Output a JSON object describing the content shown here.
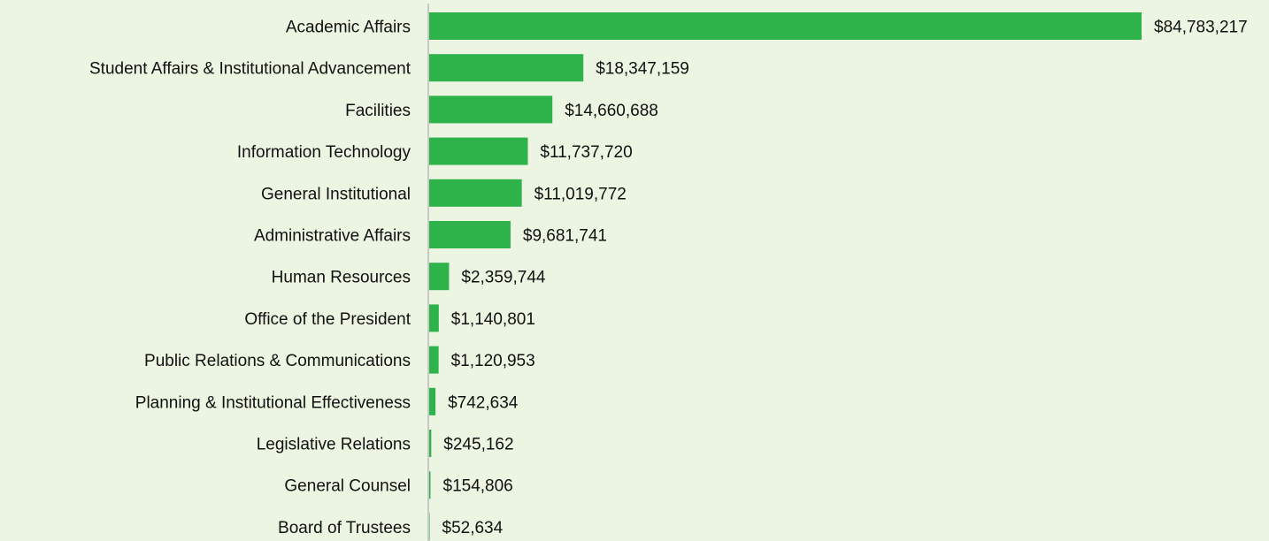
{
  "chart_data": {
    "type": "bar",
    "orientation": "horizontal",
    "categories": [
      "Academic Affairs",
      "Student Affairs & Institutional Advancement",
      "Facilities",
      "Information Technology",
      "General Institutional",
      "Administrative Affairs",
      "Human Resources",
      "Office of the President",
      "Public Relations & Communications",
      "Planning & Institutional Effectiveness",
      "Legislative Relations",
      "General Counsel",
      "Board of Trustees"
    ],
    "values": [
      84783217,
      18347159,
      14660688,
      11737720,
      11019772,
      9681741,
      2359744,
      1140801,
      1120953,
      742634,
      245162,
      154806,
      52634
    ],
    "value_labels": [
      "$84,783,217",
      "$18,347,159",
      "$14,660,688",
      "$11,737,720",
      "$11,019,772",
      "$9,681,741",
      "$2,359,744",
      "$1,140,801",
      "$1,120,953",
      "$742,634",
      "$245,162",
      "$154,806",
      "$52,634"
    ],
    "title": "",
    "xlabel": "",
    "ylabel": "",
    "grid": false,
    "legend": "none",
    "colors": {
      "bar": "#2db34a",
      "background": "#ebf5e2",
      "axis": "#c8c8c8",
      "text": "#111111"
    }
  }
}
